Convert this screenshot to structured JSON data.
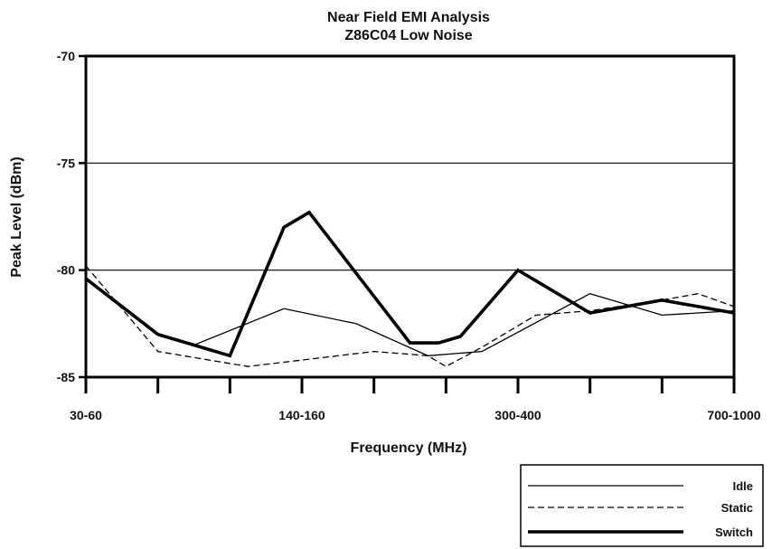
{
  "chart_data": {
    "type": "line",
    "title": "Near Field EMI Analysis",
    "subtitle": "Z86C04 Low Noise",
    "xlabel": "Frequency (MHz)",
    "ylabel": "Peak Level (dBm)",
    "ylim": [
      -85,
      -70
    ],
    "yticks": [
      -70,
      -75,
      -80,
      -85
    ],
    "xlim": [
      0,
      9
    ],
    "x_tick_labels": [
      {
        "x": 0,
        "label": "30-60"
      },
      {
        "x": 3,
        "label": "140-160"
      },
      {
        "x": 6,
        "label": "300-400"
      },
      {
        "x": 9,
        "label": "700-1000"
      }
    ],
    "gridlines": [
      -75,
      -80
    ],
    "legend_position": "bottom-right",
    "series": [
      {
        "name": "Idle",
        "style": "thin-solid",
        "x": [
          0,
          1,
          1.5,
          2.75,
          3.75,
          4.75,
          5.5,
          6.0,
          7.0,
          8.0,
          9.0
        ],
        "y": [
          -80.4,
          -83.0,
          -83.5,
          -81.8,
          -82.5,
          -84.0,
          -83.8,
          -82.9,
          -81.1,
          -82.1,
          -81.9
        ]
      },
      {
        "name": "Static",
        "style": "dashed",
        "x": [
          0,
          1,
          2.25,
          3,
          4,
          4.75,
          5,
          5.5,
          6.25,
          7.0,
          8.0,
          8.5,
          9.0
        ],
        "y": [
          -79.8,
          -83.8,
          -84.5,
          -84.2,
          -83.8,
          -84.0,
          -84.5,
          -83.6,
          -82.1,
          -81.9,
          -81.4,
          -81.1,
          -81.7
        ]
      },
      {
        "name": "Switch",
        "style": "thick-solid",
        "x": [
          0,
          1,
          2,
          2.75,
          3.1,
          4.5,
          4.9,
          5.2,
          6.0,
          7.0,
          8.0,
          9.0
        ],
        "y": [
          -80.4,
          -83.0,
          -84.0,
          -78.0,
          -77.3,
          -83.4,
          -83.4,
          -83.1,
          -80.0,
          -82.0,
          -81.4,
          -82.0
        ]
      }
    ]
  }
}
